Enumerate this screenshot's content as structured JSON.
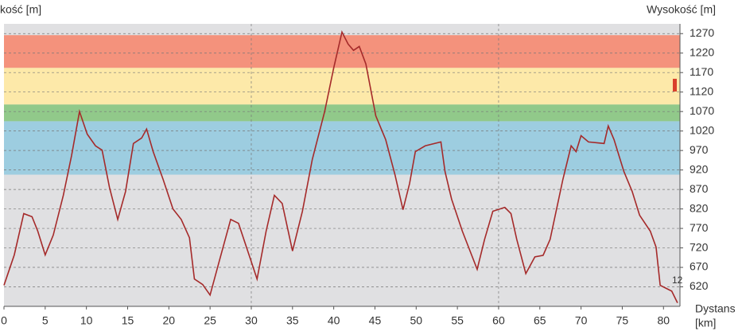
{
  "chart_data": {
    "type": "line",
    "y_label_left": "kość [m]",
    "y_label_right": "Wysokość [m]",
    "x_label": [
      "Dystans",
      "[km]"
    ],
    "annotation": "12",
    "x": [
      0,
      1.25,
      2.4,
      3.4,
      4.1,
      5,
      5.98,
      7.2,
      8.2,
      9.16,
      10.1,
      11.1,
      11.9,
      12.8,
      13.8,
      14.75,
      15.7,
      16.7,
      17.3,
      18.1,
      19.3,
      20.5,
      21.5,
      22.5,
      23.1,
      24.1,
      25,
      26.05,
      27.5,
      28.45,
      29.9,
      30.7,
      31.8,
      32.8,
      33.75,
      35,
      36.2,
      37.4,
      38.9,
      40,
      41,
      41.75,
      42.4,
      43.1,
      43.9,
      45.1,
      46.3,
      47.45,
      48.4,
      49.2,
      49.9,
      51.1,
      53,
      53.5,
      54.3,
      55.6,
      57.4,
      58.3,
      59.3,
      60.75,
      61.5,
      62.2,
      63.3,
      64.4,
      65.4,
      66.25,
      67.8,
      68.8,
      69.4,
      70,
      70.9,
      72.8,
      73.3,
      74,
      75.2,
      76.2,
      77.1,
      78.4,
      79.1,
      79.6,
      81,
      81.7
    ],
    "series": [
      {
        "color": "#a52a2a",
        "values": [
          624,
          702,
          808,
          800,
          763,
          702,
          753,
          855,
          957,
          1070,
          1012,
          982,
          971,
          875,
          793,
          865,
          988,
          1002,
          1025,
          967,
          896,
          820,
          793,
          746,
          640,
          626,
          599,
          681,
          793,
          783,
          691,
          640,
          763,
          855,
          834,
          712,
          814,
          947,
          1070,
          1182,
          1274,
          1243,
          1227,
          1237,
          1192,
          1059,
          998,
          906,
          818,
          885,
          967,
          982,
          992,
          916,
          845,
          763,
          665,
          742,
          814,
          824,
          808,
          742,
          654,
          697,
          701,
          742,
          896,
          982,
          967,
          1008,
          992,
          988,
          1033,
          998,
          916,
          865,
          804,
          763,
          722,
          624,
          609,
          579
        ]
      }
    ],
    "bands": [
      {
        "from": 1182,
        "to": 1266,
        "color": "#f4927c"
      },
      {
        "from": 1088,
        "to": 1182,
        "color": "#fde9a9"
      },
      {
        "from": 1045,
        "to": 1088,
        "color": "#91c98a"
      },
      {
        "from": 908,
        "to": 1045,
        "color": "#9dcde0"
      }
    ],
    "background": "#e0e0e2",
    "xlim": [
      0,
      82
    ],
    "ylim": [
      570,
      1295
    ],
    "xticks": [
      0,
      5,
      10,
      15,
      20,
      25,
      30,
      35,
      40,
      45,
      50,
      55,
      60,
      65,
      70,
      75,
      80
    ],
    "yticks": [
      620,
      670,
      720,
      770,
      820,
      870,
      920,
      970,
      1020,
      1070,
      1120,
      1170,
      1220,
      1270
    ],
    "grid": true
  }
}
